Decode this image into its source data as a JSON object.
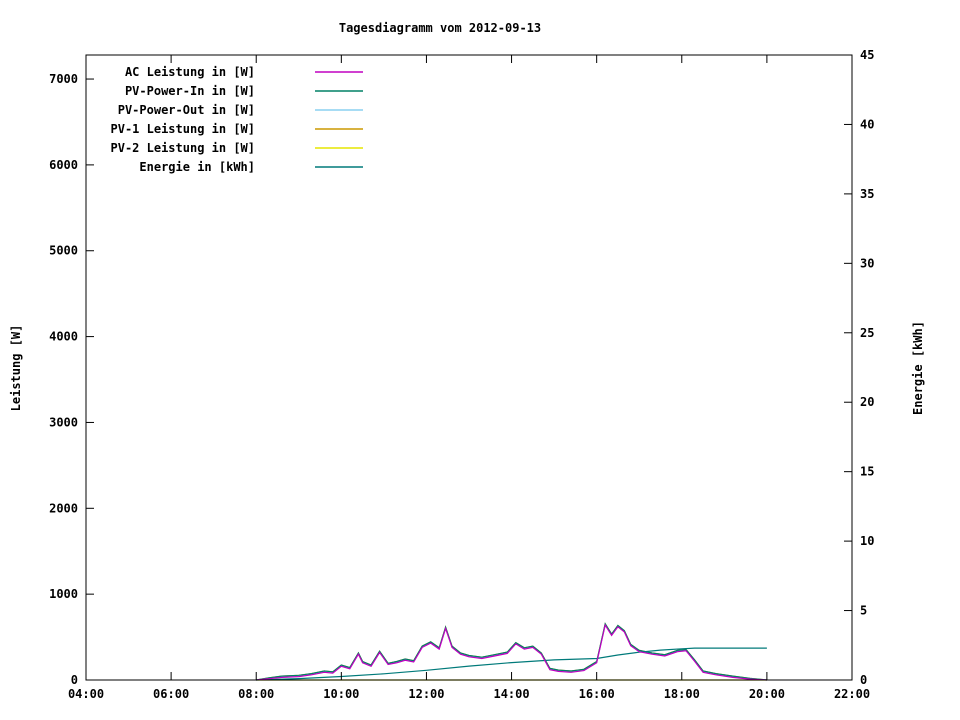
{
  "title": "Tagesdiagramm vom 2012-09-13",
  "axes": {
    "left_label": "Leistung [W]",
    "right_label": "Energie [kWh]",
    "x_ticks": [
      "04:00",
      "06:00",
      "08:00",
      "10:00",
      "12:00",
      "14:00",
      "16:00",
      "18:00",
      "20:00",
      "22:00"
    ],
    "left_ticks": [
      "0",
      "1000",
      "2000",
      "3000",
      "4000",
      "5000",
      "6000",
      "7000"
    ],
    "right_ticks": [
      "0",
      "5",
      "10",
      "15",
      "20",
      "25",
      "30",
      "35",
      "40",
      "45"
    ]
  },
  "chart_data": {
    "type": "line",
    "title": "Tagesdiagramm vom 2012-09-13",
    "xlabel": "",
    "ylabel_left": "Leistung [W]",
    "ylabel_right": "Energie [kWh]",
    "x_range_hours": [
      4,
      22
    ],
    "left_ylim": [
      0,
      7280
    ],
    "right_ylim": [
      0,
      45
    ],
    "grid": false,
    "legend_position": "top-left",
    "series": [
      {
        "name": "AC Leistung in [W]",
        "color": "#c000c0",
        "axis": "left",
        "x": [
          8.0,
          8.3,
          8.6,
          9.0,
          9.3,
          9.6,
          9.8,
          10.0,
          10.2,
          10.4,
          10.5,
          10.7,
          10.9,
          11.1,
          11.3,
          11.5,
          11.7,
          11.9,
          12.1,
          12.3,
          12.45,
          12.6,
          12.8,
          13.0,
          13.3,
          13.6,
          13.9,
          14.1,
          14.3,
          14.5,
          14.7,
          14.9,
          15.1,
          15.4,
          15.7,
          16.0,
          16.2,
          16.35,
          16.5,
          16.65,
          16.8,
          17.0,
          17.3,
          17.6,
          17.9,
          18.1,
          18.3,
          18.5,
          18.8,
          19.2,
          19.6,
          20.0
        ],
        "values": [
          0,
          15,
          30,
          40,
          60,
          90,
          80,
          160,
          130,
          300,
          200,
          160,
          320,
          180,
          200,
          230,
          210,
          380,
          430,
          360,
          600,
          380,
          300,
          270,
          250,
          280,
          310,
          420,
          360,
          380,
          300,
          120,
          100,
          90,
          110,
          200,
          640,
          520,
          620,
          560,
          400,
          330,
          300,
          280,
          330,
          340,
          220,
          90,
          60,
          30,
          10,
          0
        ]
      },
      {
        "name": "PV-Power-In in [W]",
        "color": "#008066",
        "axis": "left",
        "x": [
          8.0,
          8.3,
          8.6,
          9.0,
          9.3,
          9.6,
          9.8,
          10.0,
          10.2,
          10.4,
          10.5,
          10.7,
          10.9,
          11.1,
          11.3,
          11.5,
          11.7,
          11.9,
          12.1,
          12.3,
          12.45,
          12.6,
          12.8,
          13.0,
          13.3,
          13.6,
          13.9,
          14.1,
          14.3,
          14.5,
          14.7,
          14.9,
          15.1,
          15.4,
          15.7,
          16.0,
          16.2,
          16.35,
          16.5,
          16.65,
          16.8,
          17.0,
          17.3,
          17.6,
          17.9,
          18.1,
          18.3,
          18.5,
          18.8,
          19.2,
          19.6,
          20.0
        ],
        "values": [
          0,
          25,
          45,
          55,
          75,
          105,
          95,
          175,
          145,
          315,
          215,
          175,
          335,
          195,
          215,
          245,
          225,
          395,
          445,
          375,
          615,
          395,
          315,
          285,
          265,
          295,
          325,
          435,
          375,
          395,
          315,
          135,
          115,
          105,
          125,
          215,
          655,
          535,
          635,
          575,
          415,
          345,
          315,
          295,
          345,
          355,
          235,
          105,
          75,
          45,
          20,
          0
        ]
      },
      {
        "name": "PV-Power-Out in [W]",
        "color": "#8ad0f0",
        "axis": "left",
        "x": [
          8.0,
          8.3,
          8.6,
          9.0,
          9.3,
          9.6,
          9.8,
          10.0,
          10.2,
          10.4,
          10.5,
          10.7,
          10.9,
          11.1,
          11.3,
          11.5,
          11.7,
          11.9,
          12.1,
          12.3,
          12.45,
          12.6,
          12.8,
          13.0,
          13.3,
          13.6,
          13.9,
          14.1,
          14.3,
          14.5,
          14.7,
          14.9,
          15.1,
          15.4,
          15.7,
          16.0,
          16.2,
          16.35,
          16.5,
          16.65,
          16.8,
          17.0,
          17.3,
          17.6,
          17.9,
          18.1,
          18.3,
          18.5,
          18.8,
          19.2,
          19.6,
          20.0
        ],
        "values": [
          0,
          20,
          38,
          48,
          68,
          98,
          88,
          168,
          138,
          308,
          208,
          168,
          328,
          188,
          208,
          238,
          218,
          388,
          438,
          368,
          608,
          388,
          308,
          278,
          258,
          288,
          318,
          428,
          368,
          388,
          308,
          128,
          108,
          98,
          118,
          208,
          648,
          528,
          628,
          568,
          408,
          338,
          308,
          288,
          338,
          348,
          228,
          98,
          68,
          38,
          15,
          0
        ]
      },
      {
        "name": "PV-1 Leistung in [W]",
        "color": "#cc9900",
        "axis": "left",
        "x": [
          8.0,
          8.3,
          8.6,
          9.0,
          9.3,
          9.6,
          9.8,
          10.0,
          10.2,
          10.4,
          10.5,
          10.7,
          10.9,
          11.1,
          11.3,
          11.5,
          11.7,
          11.9,
          12.1,
          12.3,
          12.45,
          12.6,
          12.8,
          13.0,
          13.3,
          13.6,
          13.9,
          14.1,
          14.3,
          14.5,
          14.7,
          14.9,
          15.1,
          15.4,
          15.7,
          16.0,
          16.2,
          16.35,
          16.5,
          16.65,
          16.8,
          17.0,
          17.3,
          17.6,
          17.9,
          18.1,
          18.3,
          18.5,
          18.8,
          19.2,
          19.6,
          20.0
        ],
        "values": [
          0,
          25,
          45,
          55,
          75,
          105,
          95,
          175,
          145,
          315,
          215,
          175,
          335,
          195,
          215,
          245,
          225,
          395,
          445,
          375,
          615,
          395,
          315,
          285,
          265,
          295,
          325,
          435,
          375,
          395,
          315,
          135,
          115,
          105,
          125,
          215,
          655,
          535,
          635,
          575,
          415,
          345,
          315,
          295,
          345,
          355,
          235,
          105,
          75,
          45,
          20,
          0
        ]
      },
      {
        "name": "PV-2 Leistung in [W]",
        "color": "#e6e600",
        "axis": "left",
        "x": [
          8.0,
          8.3,
          8.6,
          9.0,
          9.3,
          9.6,
          9.8,
          10.0,
          10.2,
          10.4,
          10.5,
          10.7,
          10.9,
          11.1,
          11.3,
          11.5,
          11.7,
          11.9,
          12.1,
          12.3,
          12.45,
          12.6,
          12.8,
          13.0,
          13.3,
          13.6,
          13.9,
          14.1,
          14.3,
          14.5,
          14.7,
          14.9,
          15.1,
          15.4,
          15.7,
          16.0,
          16.2,
          16.35,
          16.5,
          16.65,
          16.8,
          17.0,
          17.3,
          17.6,
          17.9,
          18.1,
          18.3,
          18.5,
          18.8,
          19.2,
          19.6,
          20.0
        ],
        "values": [
          0,
          0,
          0,
          0,
          0,
          0,
          0,
          0,
          0,
          0,
          0,
          0,
          0,
          0,
          0,
          0,
          0,
          0,
          0,
          0,
          0,
          0,
          0,
          0,
          0,
          0,
          0,
          0,
          0,
          0,
          0,
          0,
          0,
          0,
          0,
          0,
          0,
          0,
          0,
          0,
          0,
          0,
          0,
          0,
          0,
          0,
          0,
          0,
          0,
          0,
          0,
          0
        ]
      },
      {
        "name": "Energie in [kWh]",
        "color": "#007a7a",
        "axis": "right",
        "x": [
          8.0,
          9.0,
          10.0,
          11.0,
          12.0,
          13.0,
          14.0,
          15.0,
          16.0,
          16.5,
          17.0,
          17.5,
          18.0,
          18.3,
          20.0
        ],
        "values": [
          0,
          0.1,
          0.25,
          0.45,
          0.7,
          1.0,
          1.25,
          1.45,
          1.55,
          1.8,
          2.0,
          2.15,
          2.25,
          2.3,
          2.3
        ]
      }
    ]
  }
}
